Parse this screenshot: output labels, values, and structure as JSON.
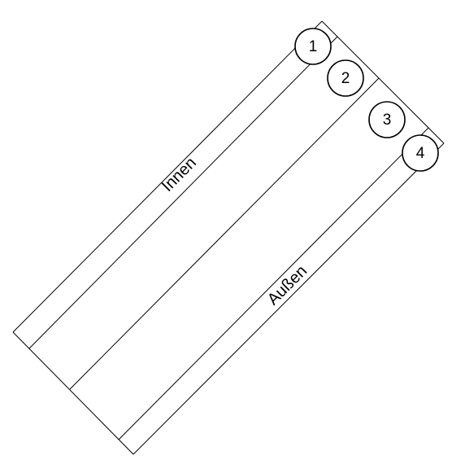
{
  "layers": [
    {
      "number": "1"
    },
    {
      "number": "2"
    },
    {
      "number": "3"
    },
    {
      "number": "4"
    }
  ],
  "labels": {
    "inner": "Innen",
    "outer": "Außen"
  }
}
